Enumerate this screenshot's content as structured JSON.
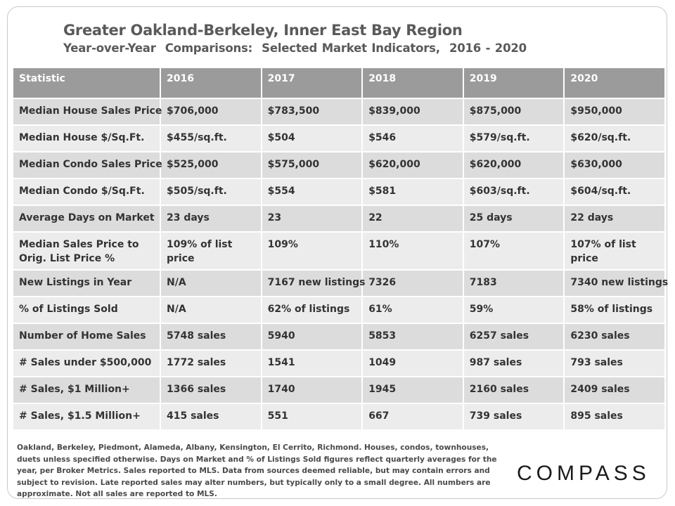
{
  "title": "Greater Oakland-Berkeley, Inner East Bay Region",
  "subtitle": "Year-over-Year  Comparisons:  Selected Market Indicators,  2016 - 2020",
  "table": {
    "headers": [
      "Statistic",
      "2016",
      "2017",
      "2018",
      "2019",
      "2020"
    ],
    "rows": [
      [
        "Median House Sales Price",
        "$706,000",
        "$783,500",
        "$839,000",
        "$875,000",
        "$950,000"
      ],
      [
        "Median House $/Sq.Ft.",
        "$455/sq.ft.",
        "$504",
        "$546",
        "$579/sq.ft.",
        "$620/sq.ft."
      ],
      [
        "Median Condo Sales Price",
        "$525,000",
        "$575,000",
        "$620,000",
        "$620,000",
        "$630,000"
      ],
      [
        "Median Condo $/Sq.Ft.",
        "$505/sq.ft.",
        "$554",
        "$581",
        "$603/sq.ft.",
        "$604/sq.ft."
      ],
      [
        "Average Days on Market",
        "23 days",
        "23",
        "22",
        "25 days",
        "22 days"
      ],
      [
        "Median Sales Price to Orig. List Price %",
        "109% of list price",
        "109%",
        "110%",
        "107%",
        "107% of list price"
      ],
      [
        "New Listings in Year",
        "N/A",
        "7167 new listings",
        "7326",
        "7183",
        "7340 new listings"
      ],
      [
        "% of Listings Sold",
        "N/A",
        "62% of listings",
        "61%",
        "59%",
        "58% of listings"
      ],
      [
        "Number of Home Sales",
        "5748 sales",
        "5940",
        "5853",
        "6257 sales",
        "6230 sales"
      ],
      [
        "# Sales under $500,000",
        "1772 sales",
        "1541",
        "1049",
        "987 sales",
        "793 sales"
      ],
      [
        "# Sales, $1 Million+",
        "1366 sales",
        "1740",
        "1945",
        "2160 sales",
        "2409 sales"
      ],
      [
        "# Sales, $1.5 Million+",
        "415 sales",
        "551",
        "667",
        "739 sales",
        "895 sales"
      ]
    ]
  },
  "footnote": "Oakland, Berkeley, Piedmont, Alameda, Albany, Kensington, El Cerrito, Richmond. Houses, condos, townhouses, duets unless specified otherwise. Days on Market  and % of Listings Sold figures reflect quarterly averages for the year, per Broker Metrics. Sales reported to MLS. Data from sources deemed reliable, but may contain errors and subject to revision. Late reported sales may alter numbers, but typically only to a small degree. All numbers are approximate.  Not all sales are reported to MLS.",
  "logo": "COMPASS"
}
